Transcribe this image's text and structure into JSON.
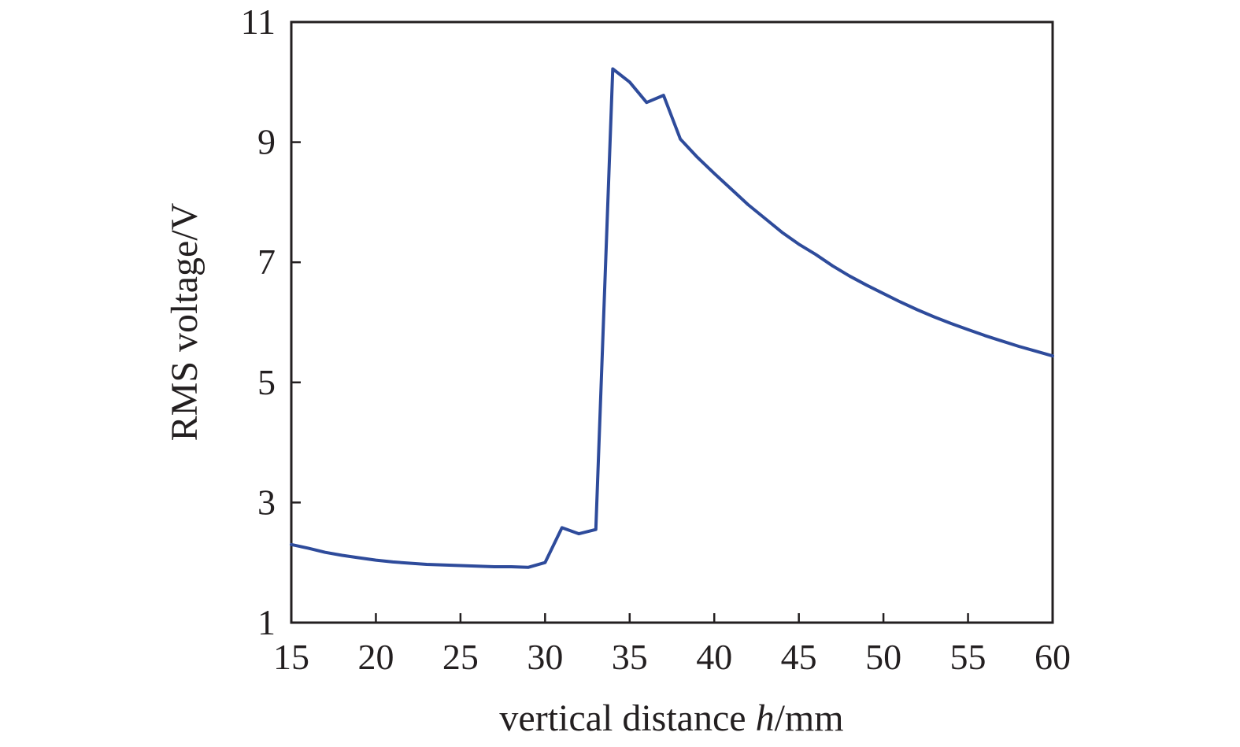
{
  "chart_data": {
    "type": "line",
    "title": "",
    "xlabel": "vertical distance h/mm",
    "xlabel_parts": {
      "pre": "vertical distance ",
      "ital": "h",
      "post": "/mm"
    },
    "ylabel": "RMS voltage/V",
    "xlim": [
      15,
      60
    ],
    "ylim": [
      1,
      11
    ],
    "xticks": [
      15,
      20,
      25,
      30,
      35,
      40,
      45,
      50,
      55,
      60
    ],
    "yticks": [
      1,
      3,
      5,
      7,
      9,
      11
    ],
    "grid": false,
    "legend": "none",
    "series": [
      {
        "color": "#2e4b9b",
        "x": [
          15,
          16,
          17,
          18,
          19,
          20,
          21,
          22,
          23,
          24,
          25,
          26,
          27,
          28,
          29,
          30,
          31,
          32,
          33,
          34,
          35,
          36,
          37,
          38,
          39,
          40,
          41,
          42,
          43,
          44,
          45,
          46,
          47,
          48,
          49,
          50,
          51,
          52,
          53,
          54,
          55,
          56,
          57,
          58,
          59,
          60
        ],
        "y": [
          2.3,
          2.24,
          2.17,
          2.12,
          2.08,
          2.04,
          2.01,
          1.99,
          1.97,
          1.96,
          1.95,
          1.94,
          1.93,
          1.93,
          1.92,
          2.0,
          2.58,
          2.48,
          2.55,
          10.22,
          10.0,
          9.66,
          9.78,
          9.05,
          8.75,
          8.48,
          8.22,
          7.96,
          7.73,
          7.5,
          7.3,
          7.13,
          6.94,
          6.77,
          6.62,
          6.48,
          6.34,
          6.21,
          6.09,
          5.98,
          5.88,
          5.78,
          5.69,
          5.6,
          5.52,
          5.44
        ]
      }
    ]
  }
}
